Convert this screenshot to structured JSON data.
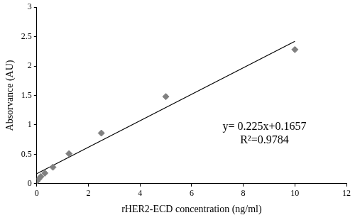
{
  "chart_data": {
    "type": "scatter",
    "x_label": "rHER2-ECD concentration (ng/ml)",
    "y_label": "Absorvance (AU)",
    "annotations": [
      "y= 0.225x+0.1657",
      "R²=0.9784"
    ],
    "series": [
      {
        "type": "scatter",
        "marker": "diamond",
        "color": "#808080",
        "x": [
          0,
          0.078,
          0.156,
          0.3125,
          0.625,
          1.25,
          2.5,
          5,
          10
        ],
        "values": [
          0.04,
          0.08,
          0.12,
          0.18,
          0.28,
          0.51,
          0.86,
          1.48,
          2.28
        ]
      },
      {
        "type": "line",
        "line_style": "solid",
        "color": "#000000",
        "x": [
          0,
          10
        ],
        "values": [
          0.17,
          2.42
        ]
      }
    ],
    "xlim": [
      0,
      12
    ],
    "xticks": [
      0,
      2,
      4,
      6,
      8,
      10,
      12
    ],
    "ylim": [
      0,
      3
    ],
    "yticks": [
      0,
      0.5,
      1,
      1.5,
      2,
      2.5,
      3
    ],
    "grid": false
  }
}
